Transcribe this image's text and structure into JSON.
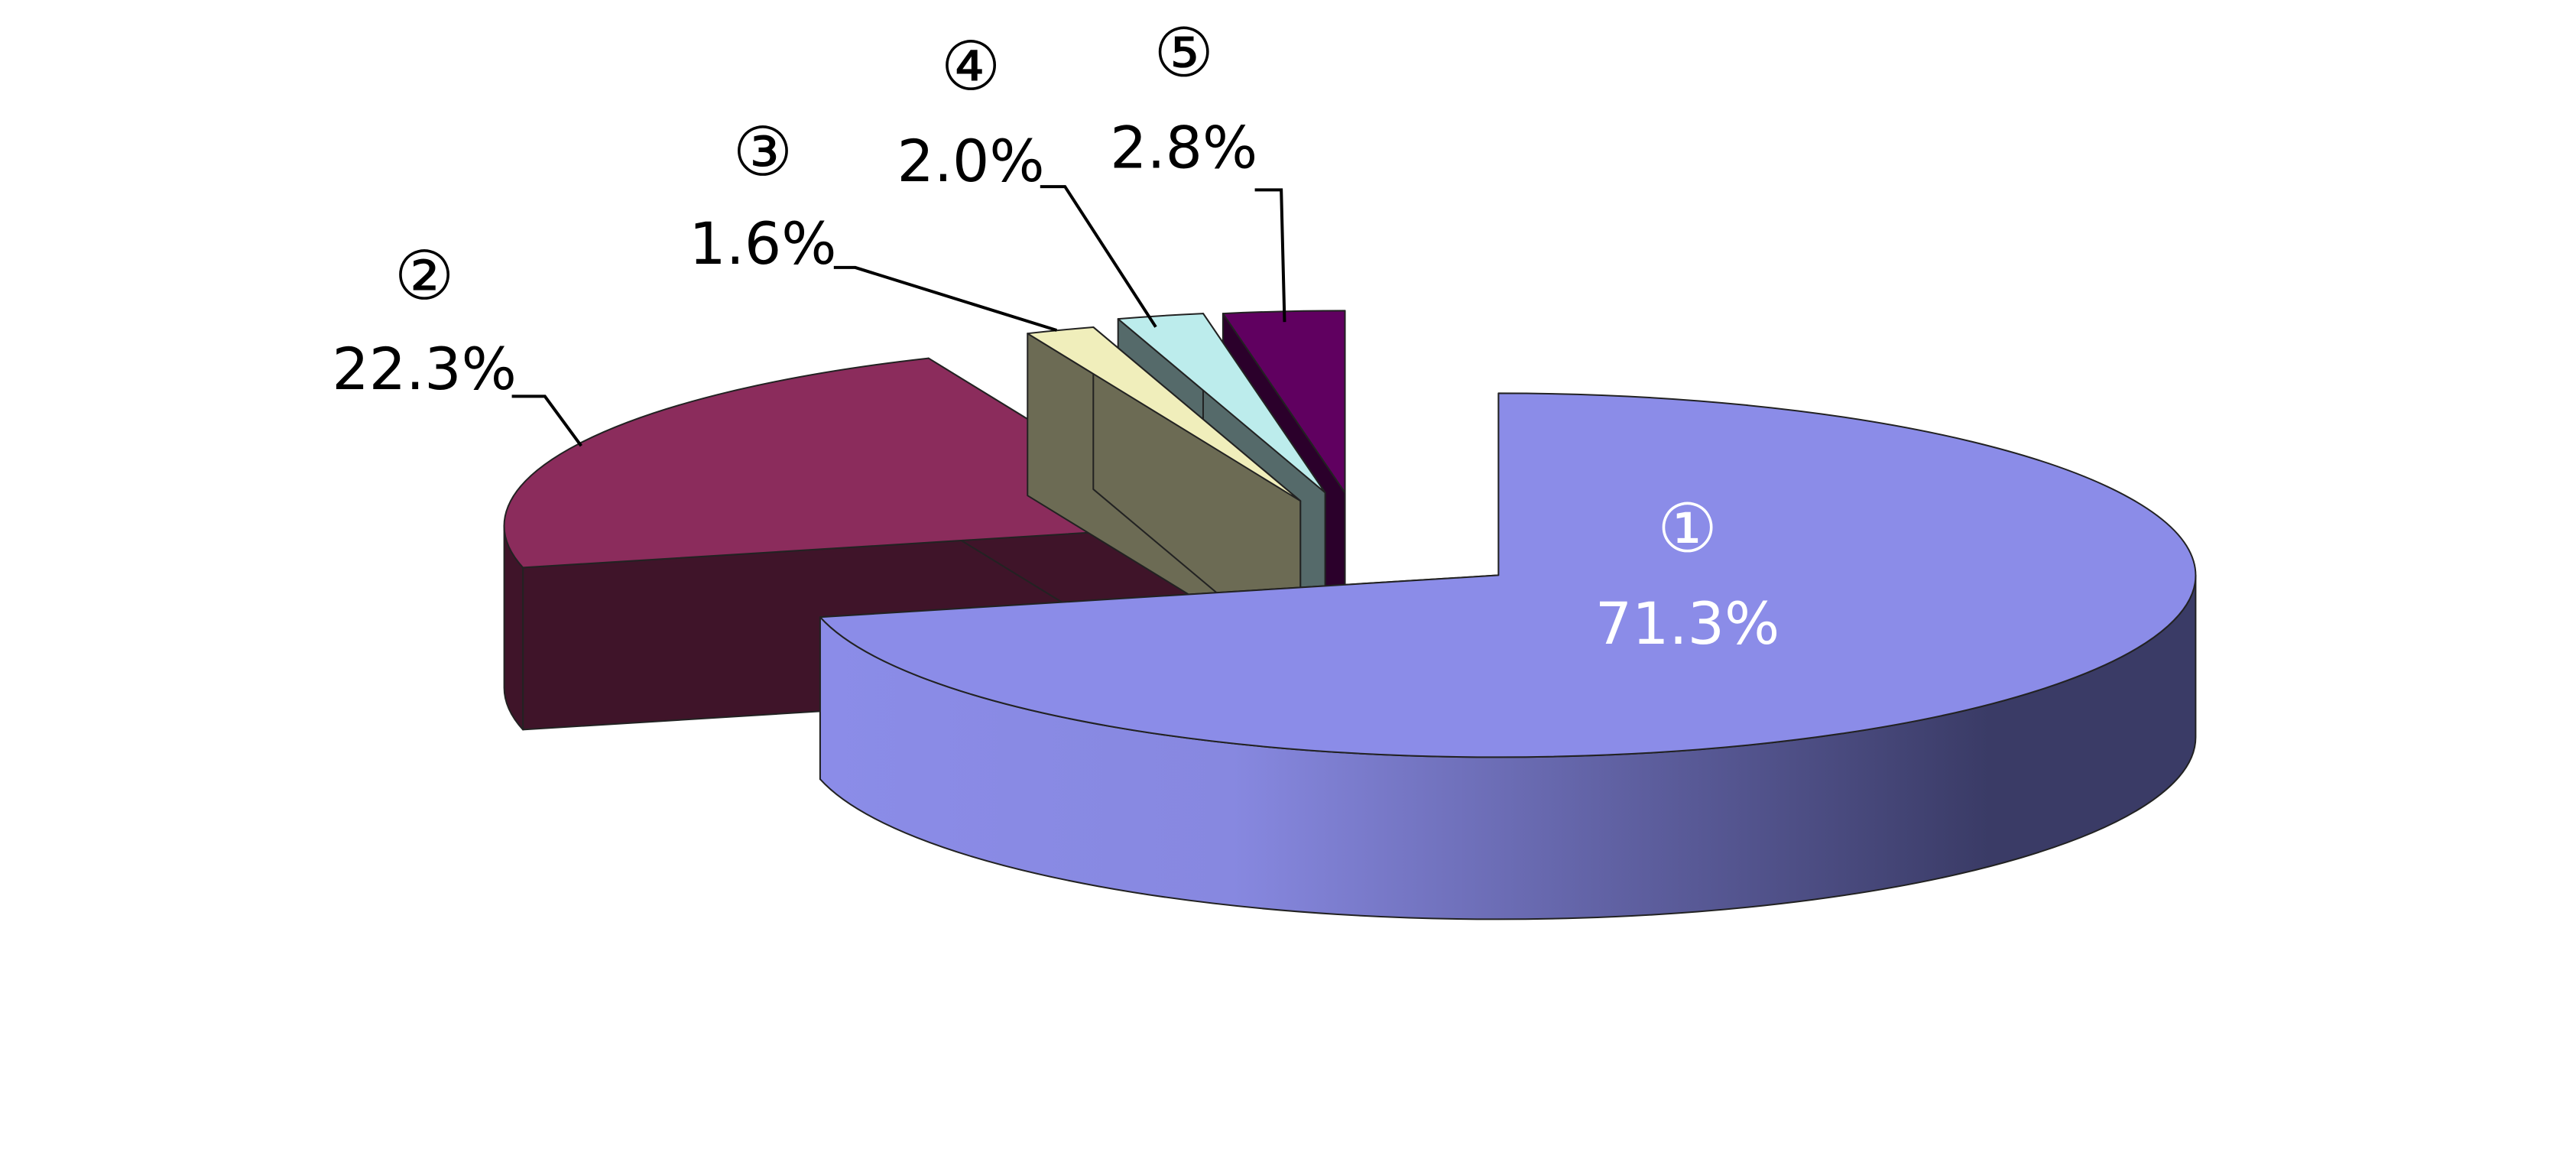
{
  "chart_data": {
    "type": "pie",
    "categories": [
      "①",
      "②",
      "③",
      "④",
      "⑤"
    ],
    "values": [
      71.3,
      22.3,
      1.6,
      2.0,
      2.8
    ],
    "value_labels": [
      "71.3%",
      "22.3%",
      "1.6%",
      "2.0%",
      "2.8%"
    ],
    "colors": [
      "#8b8ce8",
      "#8b2c5c",
      "#f0eebb",
      "#bcecec",
      "#600060"
    ]
  }
}
